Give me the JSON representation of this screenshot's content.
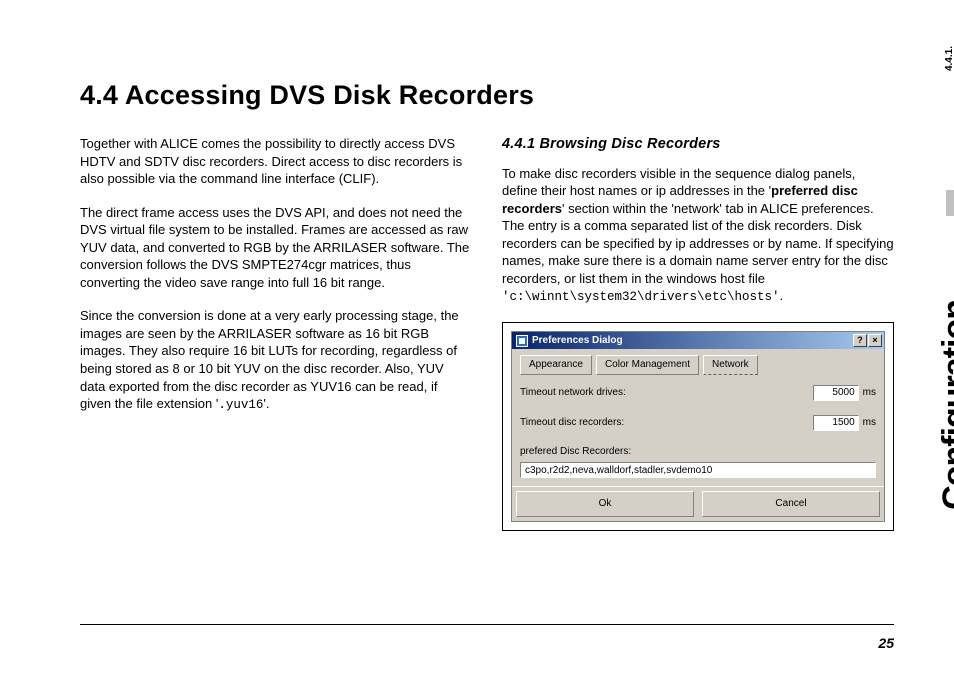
{
  "heading": "4.4  Accessing DVS Disk Recorders",
  "left": {
    "p1": "Together with ALICE comes the possibility to directly access DVS HDTV and SDTV disc recorders. Direct access to disc recorders is also possible via the command line interface (CLIF).",
    "p2": "The direct frame access uses the DVS API, and does not need the DVS virtual file system to be installed. Frames are accessed as raw YUV data, and converted to RGB by the ARRILASER software. The conversion follows the DVS SMPTE274cgr matrices, thus converting the video save range into full 16 bit range.",
    "p3a": "Since the conversion is done at a very early processing stage, the images are seen by the ARRILASER software as 16 bit RGB images. They also require 16 bit LUTs for recording, regardless of being stored as 8 or 10 bit YUV on the disc recorder. Also, YUV data exported from the disc recorder as YUV16 can be read, if given the file extension '",
    "p3code": ".yuv16",
    "p3b": "'."
  },
  "right": {
    "subheading": "4.4.1  Browsing Disc Recorders",
    "p1a": "To make disc recorders visible in the sequence dialog panels, define their host names or ip addresses in the '",
    "p1bold": "preferred disc recorders",
    "p1b": "' section within the 'network' tab in ALICE preferences. The entry is a comma separated list of the disk recorders. Disk recorders can be specified by ip addresses or by name. If specifying names, make sure there is a domain name server entry for the disc recorders, or list them in the windows host file",
    "p1code": "'c:\\winnt\\system32\\drivers\\etc\\hosts'",
    "p1end": "."
  },
  "dialog": {
    "title": "Preferences Dialog",
    "help_btn": "?",
    "close_btn": "×",
    "tabs": {
      "t1": "Appearance",
      "t2": "Color Management",
      "t3": "Network"
    },
    "row1": {
      "label": "Timeout network drives:",
      "value": "5000",
      "unit": "ms"
    },
    "row2": {
      "label": "Timeout disc recorders:",
      "value": "1500",
      "unit": "ms"
    },
    "pref_label": "prefered Disc Recorders:",
    "pref_value": "c3po,r2d2,neva,walldorf,stadler,svdemo10",
    "ok": "Ok",
    "cancel": "Cancel"
  },
  "sidebar": {
    "word": "Configuration",
    "section": "4.4.1."
  },
  "page_number": "25"
}
